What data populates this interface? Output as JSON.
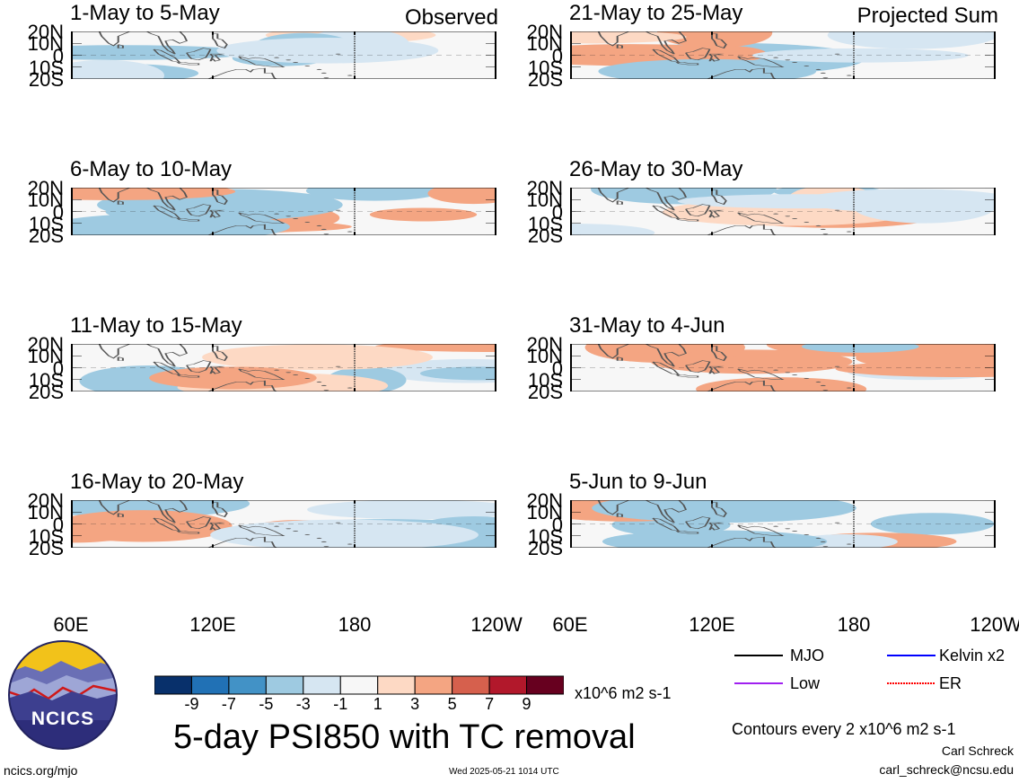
{
  "chart_data": {
    "type": "heatmap",
    "title": "5-day PSI850 with TC removal",
    "column_headers": [
      "Observed",
      "Projected Sum"
    ],
    "y_ticks": [
      "20N",
      "10N",
      "0",
      "10S",
      "20S"
    ],
    "x_ticks": [
      "60E",
      "120E",
      "180",
      "120W"
    ],
    "ylim": [
      "20S",
      "20N"
    ],
    "xlim": [
      "60E",
      "120W"
    ],
    "panels": [
      {
        "column": "Observed",
        "label": "1-May to 5-May"
      },
      {
        "column": "Observed",
        "label": "6-May to 10-May"
      },
      {
        "column": "Observed",
        "label": "11-May to 15-May"
      },
      {
        "column": "Observed",
        "label": "16-May to 20-May"
      },
      {
        "column": "Projected Sum",
        "label": "21-May to 25-May"
      },
      {
        "column": "Projected Sum",
        "label": "26-May to 30-May"
      },
      {
        "column": "Projected Sum",
        "label": "31-May to 4-Jun"
      },
      {
        "column": "Projected Sum",
        "label": "5-Jun to 9-Jun"
      }
    ],
    "colorbar": {
      "ticks": [
        "-9",
        "-7",
        "-5",
        "-3",
        "-1",
        "1",
        "3",
        "5",
        "7",
        "9"
      ],
      "units": "x10^6 m2 s-1",
      "colors": [
        "#08306b",
        "#2171b5",
        "#4292c6",
        "#9ecae1",
        "#d6e6f2",
        "#f7f7f7",
        "#fdd9c4",
        "#f4a582",
        "#d6604d",
        "#b2182b",
        "#67001f"
      ]
    },
    "legend": [
      {
        "label": "MJO",
        "color": "#000000"
      },
      {
        "label": "Kelvin x2",
        "color": "#0000ff"
      },
      {
        "label": "Low",
        "color": "#a020f0"
      },
      {
        "label": "ER",
        "color": "#ff0000"
      }
    ],
    "contour_note": "Contours every 2 x10^6 m2 s-1"
  },
  "footer": {
    "logo_text": "NCICS",
    "url": "ncics.org/mjo",
    "timestamp": "Wed 2025-05-21 1014 UTC",
    "author": "Carl Schreck",
    "email": "carl_schreck@ncsu.edu"
  }
}
